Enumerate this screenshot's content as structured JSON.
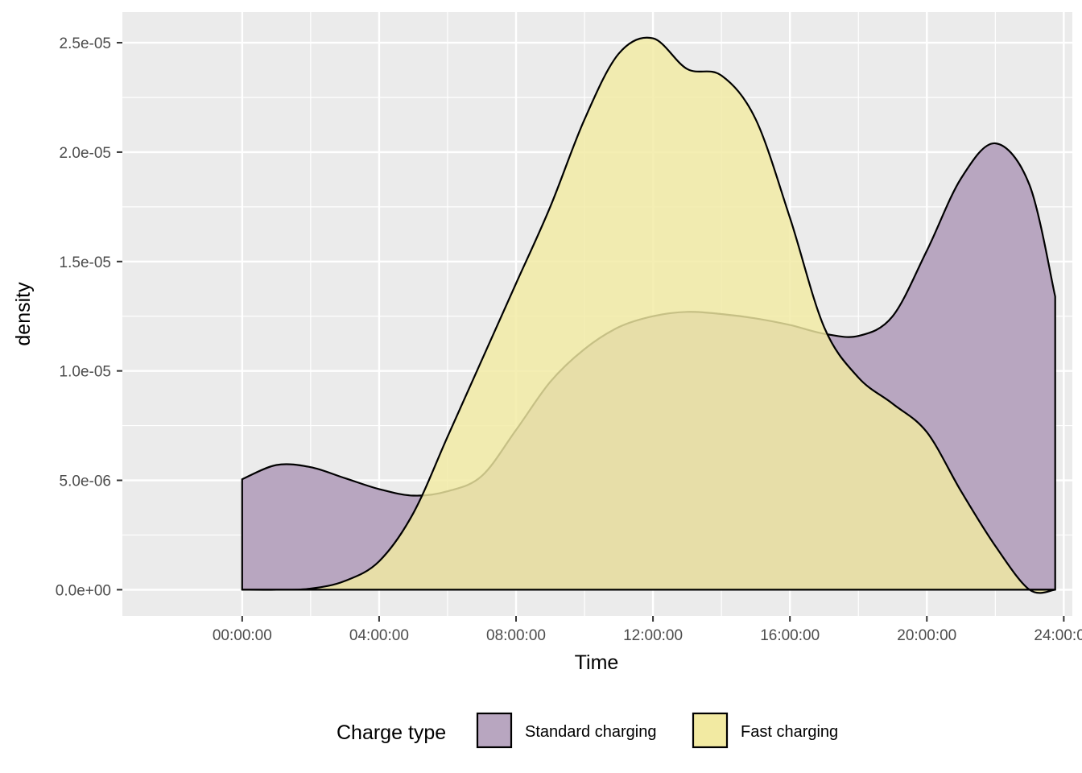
{
  "chart_data": {
    "type": "area",
    "subtype": "density",
    "xlabel": "Time",
    "ylabel": "density",
    "x_unit": "seconds since midnight",
    "xlim": [
      -12600,
      87300
    ],
    "ylim": [
      -1.2e-06,
      2.64e-05
    ],
    "x_ticks": [
      {
        "value": 0,
        "label": "00:00:00"
      },
      {
        "value": 14400,
        "label": "04:00:00"
      },
      {
        "value": 28800,
        "label": "08:00:00"
      },
      {
        "value": 43200,
        "label": "12:00:00"
      },
      {
        "value": 57600,
        "label": "16:00:00"
      },
      {
        "value": 72000,
        "label": "20:00:00"
      },
      {
        "value": 86400,
        "label": "24:00:00"
      }
    ],
    "y_ticks": [
      {
        "value": 0,
        "label": "0.0e+00"
      },
      {
        "value": 5e-06,
        "label": "5.0e-06"
      },
      {
        "value": 1e-05,
        "label": "1.0e-05"
      },
      {
        "value": 1.5e-05,
        "label": "1.5e-05"
      },
      {
        "value": 2e-05,
        "label": "2.0e-05"
      },
      {
        "value": 2.5e-05,
        "label": "2.5e-05"
      }
    ],
    "grid": true,
    "legend": {
      "title": "Charge type",
      "position": "bottom"
    },
    "series": [
      {
        "name": "Standard charging",
        "color": "#b8a6c0",
        "x": [
          0,
          3600,
          7200,
          10800,
          14400,
          18000,
          21600,
          25200,
          28800,
          32400,
          36000,
          39600,
          43200,
          46800,
          50400,
          54000,
          57600,
          61200,
          64800,
          68400,
          72000,
          75600,
          79200,
          82800,
          85500
        ],
        "values": [
          5.05e-06,
          5.7e-06,
          5.6e-06,
          5.1e-06,
          4.6e-06,
          4.3e-06,
          4.5e-06,
          5.2e-06,
          7.3e-06,
          9.5e-06,
          1.1e-05,
          1.2e-05,
          1.25e-05,
          1.27e-05,
          1.26e-05,
          1.24e-05,
          1.21e-05,
          1.17e-05,
          1.16e-05,
          1.25e-05,
          1.55e-05,
          1.88e-05,
          2.04e-05,
          1.85e-05,
          1.34e-05
        ]
      },
      {
        "name": "Fast charging",
        "color": "#f2eaa2",
        "x": [
          0,
          3600,
          7200,
          10800,
          14400,
          18000,
          21600,
          25200,
          28800,
          32400,
          36000,
          39600,
          43200,
          46800,
          50400,
          54000,
          57600,
          61200,
          64800,
          68400,
          72000,
          75600,
          79200,
          82800,
          85500
        ],
        "values": [
          0,
          0,
          5e-08,
          4e-07,
          1.3e-06,
          3.5e-06,
          7e-06,
          1.05e-05,
          1.4e-05,
          1.75e-05,
          2.15e-05,
          2.45e-05,
          2.52e-05,
          2.38e-05,
          2.35e-05,
          2.15e-05,
          1.7e-05,
          1.2e-05,
          9.7e-06,
          8.5e-06,
          7.2e-06,
          4.5e-06,
          2e-06,
          0,
          0
        ]
      }
    ]
  }
}
